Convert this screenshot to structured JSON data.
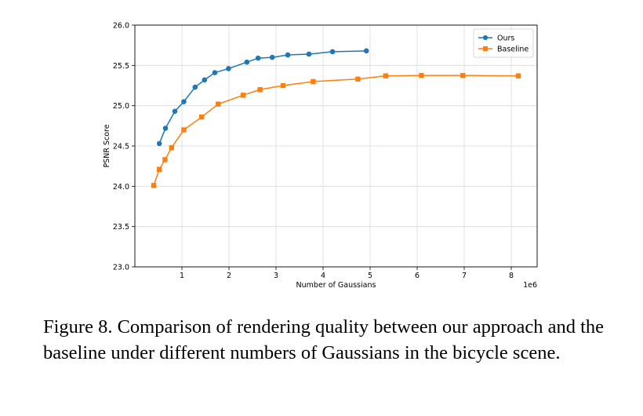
{
  "chart_data": {
    "type": "line",
    "title": "",
    "xlabel": "Number of Gaussians",
    "ylabel": "PSNR Score",
    "x_scale_label": "1e6",
    "xlim": [
      0.0,
      8.55
    ],
    "ylim": [
      23.0,
      26.0
    ],
    "xticks": [
      1,
      2,
      3,
      4,
      5,
      6,
      7,
      8
    ],
    "xtick_labels": [
      "1",
      "2",
      "3",
      "4",
      "5",
      "6",
      "7",
      "8"
    ],
    "yticks": [
      23.0,
      23.5,
      24.0,
      24.5,
      25.0,
      25.5,
      26.0
    ],
    "ytick_labels": [
      "23.0",
      "23.5",
      "24.0",
      "24.5",
      "25.0",
      "25.5",
      "26.0"
    ],
    "grid": true,
    "legend_position": "top-right",
    "series": [
      {
        "name": "Ours",
        "color": "#1f77b4",
        "marker": "circle",
        "x": [
          0.52,
          0.65,
          0.85,
          1.04,
          1.28,
          1.48,
          1.7,
          1.99,
          2.38,
          2.62,
          2.92,
          3.25,
          3.7,
          4.2,
          4.92
        ],
        "y": [
          24.53,
          24.72,
          24.93,
          25.05,
          25.23,
          25.32,
          25.41,
          25.46,
          25.54,
          25.59,
          25.6,
          25.63,
          25.64,
          25.67,
          25.68
        ]
      },
      {
        "name": "Baseline",
        "color": "#ff7f0e",
        "marker": "square",
        "x": [
          0.4,
          0.52,
          0.64,
          0.78,
          1.04,
          1.42,
          1.77,
          2.3,
          2.66,
          3.15,
          3.79,
          4.74,
          5.33,
          6.09,
          6.97,
          8.15
        ],
        "y": [
          24.01,
          24.21,
          24.33,
          24.48,
          24.7,
          24.86,
          25.02,
          25.13,
          25.2,
          25.25,
          25.3,
          25.33,
          25.37,
          25.375,
          25.375,
          25.37
        ]
      }
    ]
  },
  "caption": "Figure 8. Comparison of rendering quality between our approach and the baseline under different numbers of Gaussians in the bicycle scene."
}
